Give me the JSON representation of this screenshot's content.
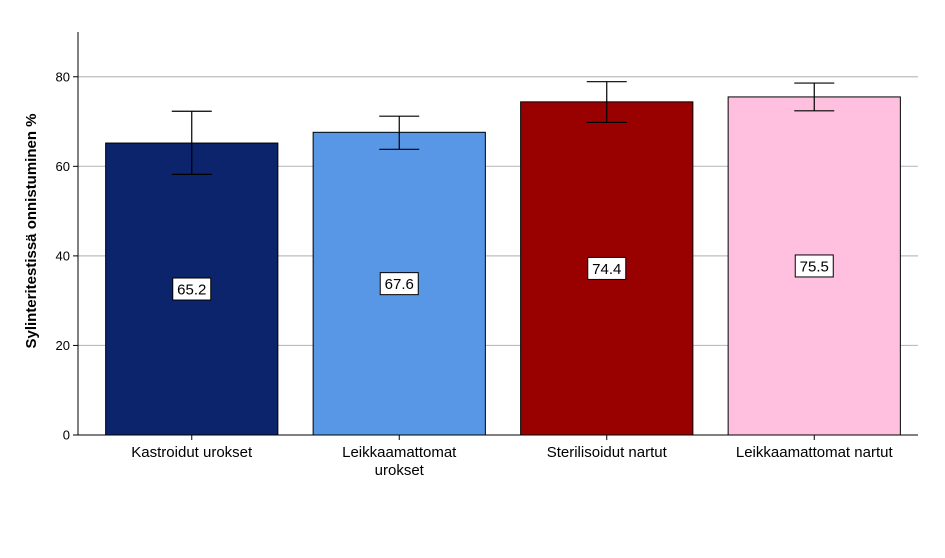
{
  "chart_data": {
    "type": "bar",
    "title": "",
    "xlabel": "",
    "ylabel": "Sylinteritestissä onnistuminen %",
    "ylim": [
      0,
      90
    ],
    "yticks": [
      0,
      20,
      40,
      60,
      80
    ],
    "grid": true,
    "categories": [
      "Kastroidut urokset",
      "Leikkaamattomat urokset",
      "Sterilisoidut nartut",
      "Leikkaamattomat nartut"
    ],
    "values": [
      65.2,
      67.6,
      74.4,
      75.5
    ],
    "data_labels": [
      "65.2",
      "67.6",
      "74.4",
      "75.5"
    ],
    "error_bars": [
      {
        "low": 58.2,
        "high": 72.3
      },
      {
        "low": 63.8,
        "high": 71.2
      },
      {
        "low": 69.8,
        "high": 78.9
      },
      {
        "low": 72.4,
        "high": 78.6
      }
    ],
    "colors": [
      "#0c246b",
      "#5797e5",
      "#990000",
      "#ffc0e0"
    ]
  }
}
